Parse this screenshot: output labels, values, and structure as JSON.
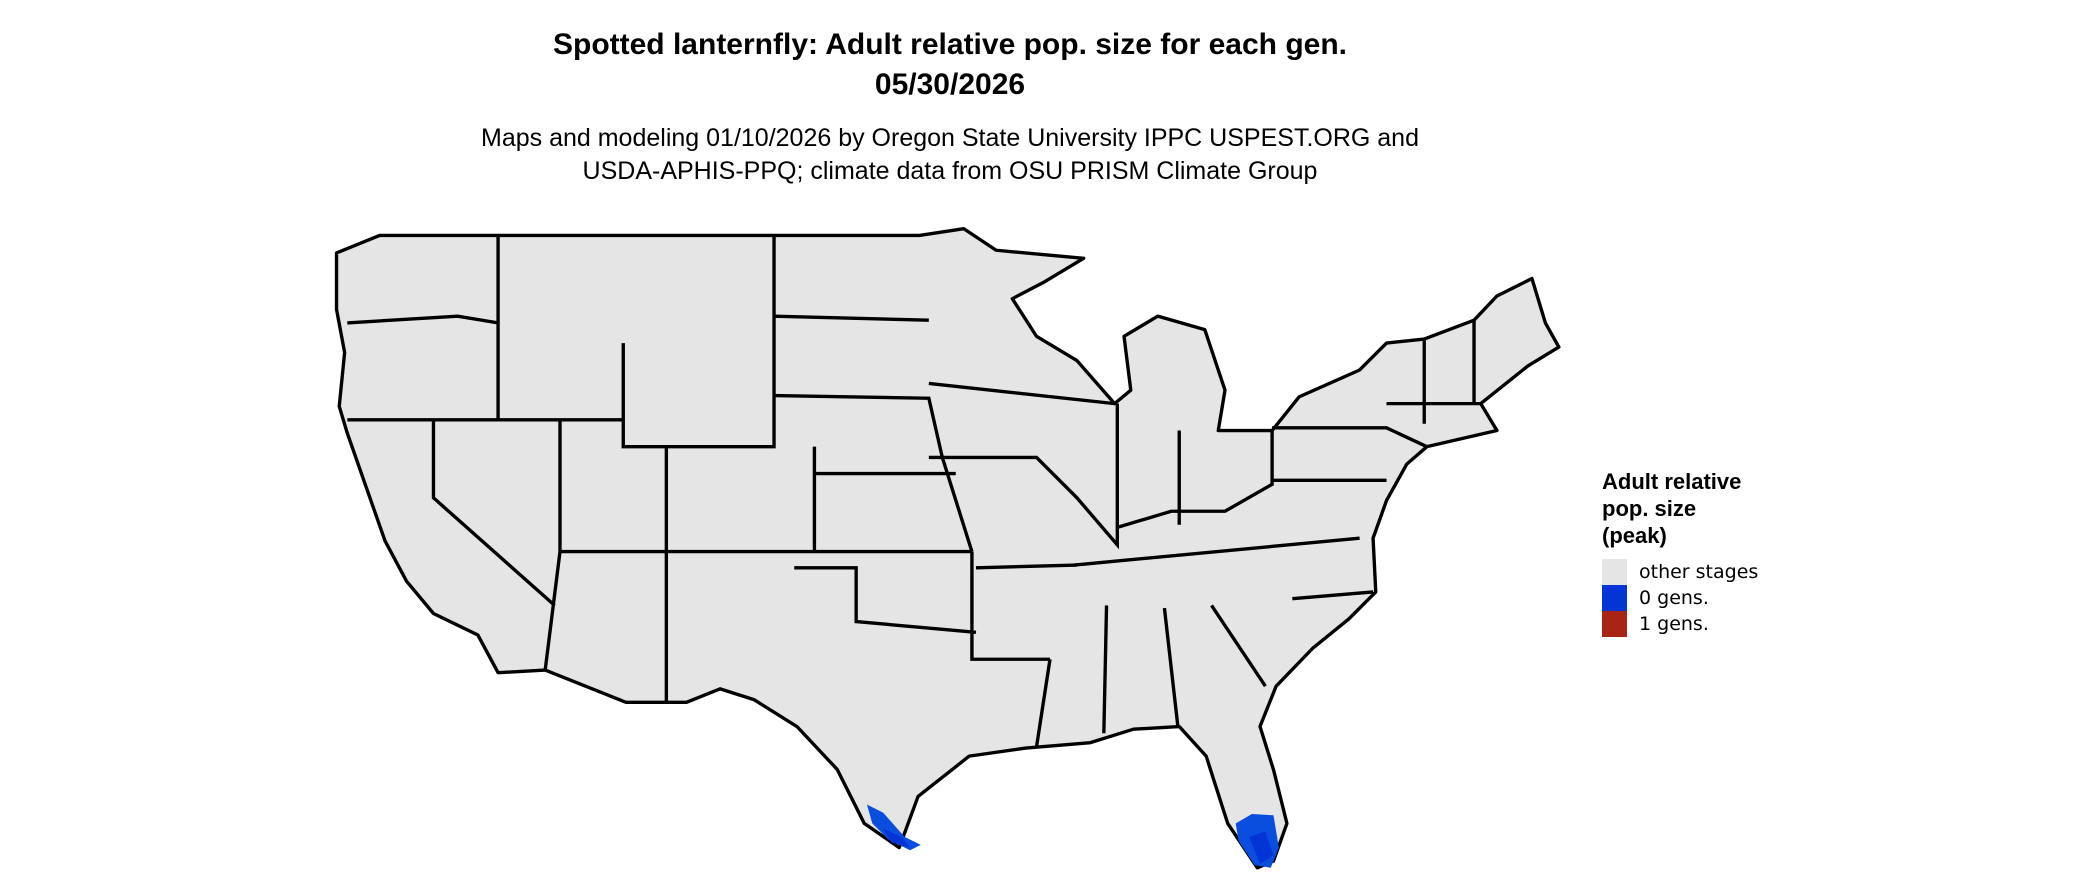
{
  "title": "Spotted lanternfly: Adult relative pop. size for each gen.",
  "date": "05/30/2026",
  "subtitle_line1": "Maps and modeling 01/10/2026 by Oregon State University IPPC USPEST.ORG and",
  "subtitle_line2": "USDA-APHIS-PPQ; climate data from OSU PRISM Climate Group",
  "legend": {
    "title": "Adult relative\npop. size\n(peak)",
    "items": [
      {
        "label": "other stages",
        "color": "#e5e5e5"
      },
      {
        "label": "0 gens.",
        "color": "#0433d6"
      },
      {
        "label": "1 gens.",
        "color": "#a82414"
      }
    ]
  },
  "map": {
    "land_color": "#e5e5e5",
    "border_color": "#000000",
    "highlight_regions": [
      "south Florida",
      "south Texas"
    ],
    "highlight_color": "#0a4ee0"
  }
}
